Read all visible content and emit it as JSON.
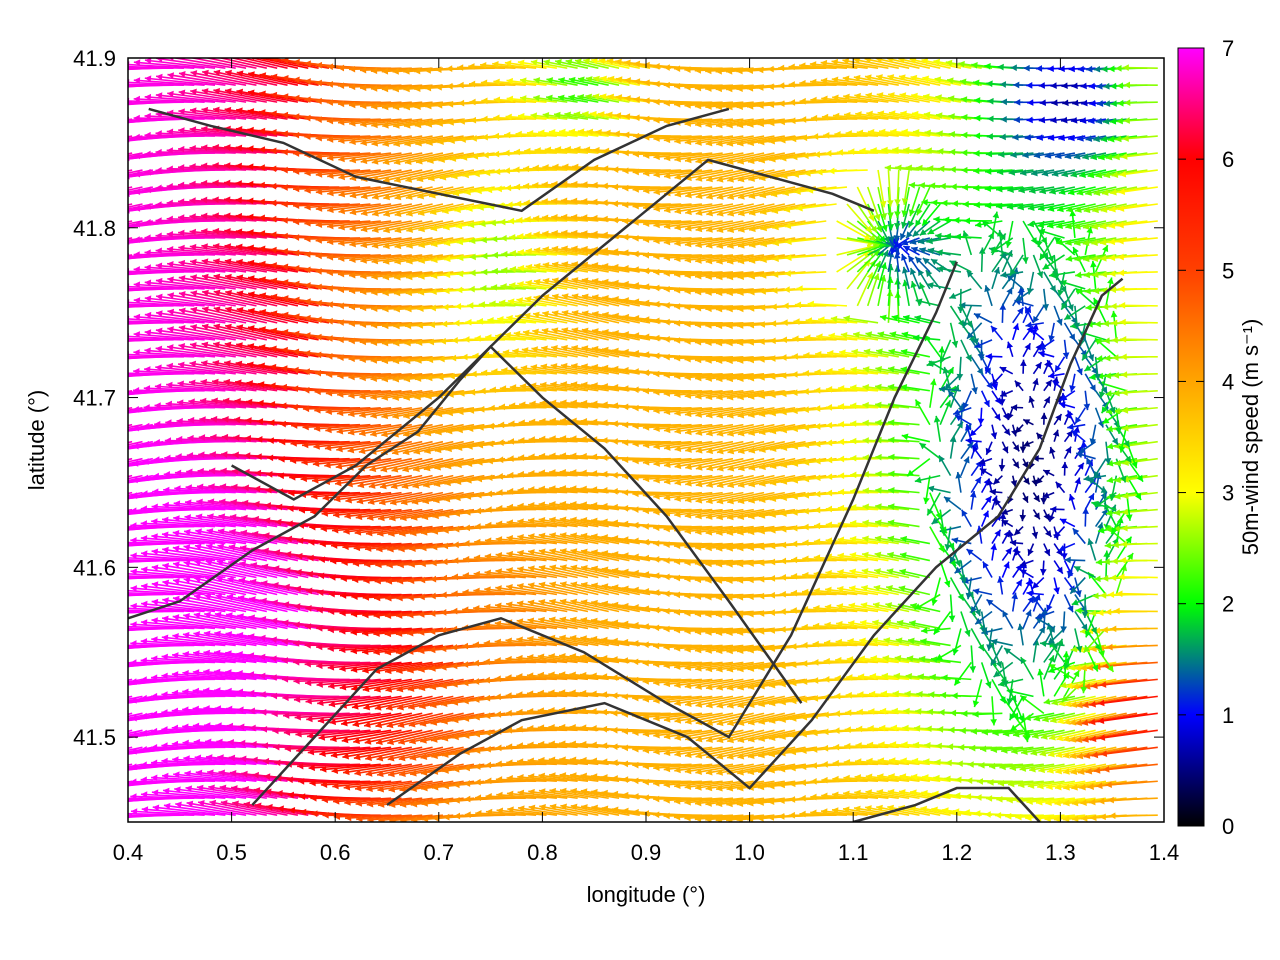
{
  "chart_data": {
    "type": "vector_field",
    "xlabel": "longitude (°)",
    "ylabel": "latitude (°)",
    "colorbar_label": "50m-wind speed (m s⁻¹)",
    "xlim": [
      0.4,
      1.4
    ],
    "ylim": [
      41.45,
      41.9
    ],
    "x_ticks": [
      "0.4",
      "0.5",
      "0.6",
      "0.7",
      "0.8",
      "0.9",
      "1.0",
      "1.1",
      "1.2",
      "1.3",
      "1.4"
    ],
    "y_ticks": [
      "41.5",
      "41.6",
      "41.7",
      "41.8",
      "41.9"
    ],
    "colorbar_range": [
      0,
      7
    ],
    "colorbar_ticks": [
      "0",
      "1",
      "2",
      "3",
      "4",
      "5",
      "6",
      "7"
    ],
    "colormap": [
      "#000000",
      "#0000ff",
      "#00ff00",
      "#ffff00",
      "#ffa500",
      "#ff0000",
      "#ff00ff"
    ],
    "grid": false,
    "speed_regions": [
      {
        "region": "west (0.40–0.60)",
        "speed": 6.8,
        "direction": "from east"
      },
      {
        "region": "center (0.60–0.95)",
        "speed": 5.0,
        "direction": "from east"
      },
      {
        "region": "around (0.78, 41.80)",
        "speed": 3.0,
        "direction": "from east"
      },
      {
        "region": "around (1.14, 41.78)",
        "speed": 2.0,
        "direction": "convergence"
      },
      {
        "region": "east (1.20–1.40, 41.50–41.80)",
        "speed": 1.0,
        "direction": "variable"
      },
      {
        "region": "southeast (1.35–1.40, 41.45–41.60)",
        "speed": 3.5,
        "direction": "from east"
      }
    ],
    "contours": [
      {
        "lon": [
          0.42,
          0.48,
          0.55,
          0.62,
          0.7,
          0.78,
          0.85,
          0.92,
          0.98
        ],
        "lat": [
          41.87,
          41.86,
          41.85,
          41.83,
          41.82,
          41.81,
          41.84,
          41.86,
          41.87
        ]
      },
      {
        "lon": [
          0.5,
          0.56,
          0.62,
          0.7,
          0.75,
          0.8,
          0.84,
          0.88,
          0.92,
          0.96,
          1.02,
          1.08,
          1.12
        ],
        "lat": [
          41.66,
          41.64,
          41.66,
          41.7,
          41.73,
          41.76,
          41.78,
          41.8,
          41.82,
          41.84,
          41.83,
          41.82,
          41.81
        ]
      },
      {
        "lon": [
          0.4,
          0.45,
          0.52,
          0.58,
          0.63,
          0.68,
          0.72,
          0.75,
          0.8,
          0.86,
          0.92,
          0.98,
          1.05
        ],
        "lat": [
          41.57,
          41.58,
          41.61,
          41.63,
          41.66,
          41.68,
          41.71,
          41.73,
          41.7,
          41.67,
          41.63,
          41.58,
          41.52
        ]
      },
      {
        "lon": [
          0.52,
          0.58,
          0.64,
          0.7,
          0.76,
          0.84,
          0.92,
          0.98,
          1.04,
          1.1,
          1.14,
          1.18,
          1.2
        ],
        "lat": [
          41.46,
          41.5,
          41.54,
          41.56,
          41.57,
          41.55,
          41.52,
          41.5,
          41.56,
          41.64,
          41.7,
          41.75,
          41.78
        ]
      },
      {
        "lon": [
          0.65,
          0.72,
          0.78,
          0.86,
          0.94,
          1.0,
          1.06,
          1.12,
          1.18,
          1.24,
          1.28,
          1.31,
          1.34,
          1.36
        ],
        "lat": [
          41.46,
          41.49,
          41.51,
          41.52,
          41.5,
          41.47,
          41.51,
          41.56,
          41.6,
          41.63,
          41.67,
          41.72,
          41.76,
          41.77
        ]
      },
      {
        "lon": [
          1.1,
          1.16,
          1.2,
          1.25,
          1.28
        ],
        "lat": [
          41.45,
          41.46,
          41.47,
          41.47,
          41.45
        ]
      }
    ]
  }
}
